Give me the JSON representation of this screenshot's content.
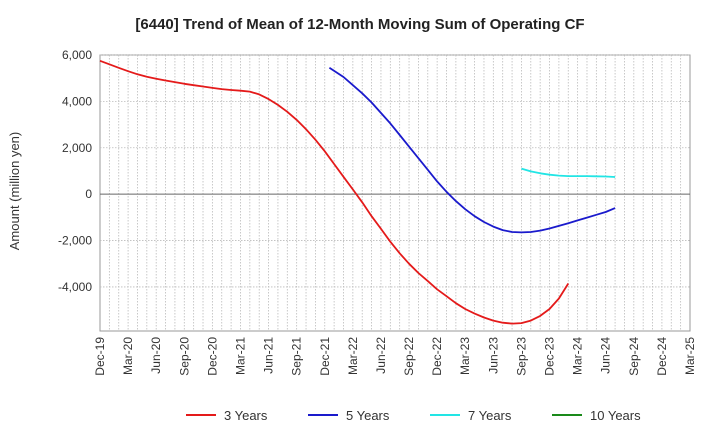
{
  "chart_data": {
    "type": "line",
    "title": "[6440]  Trend of Mean of 12-Month Moving Sum of Operating CF",
    "xlabel": "",
    "ylabel": "Amount (million yen)",
    "ylim": [
      -5900,
      6000
    ],
    "yticks": [
      6000,
      4000,
      2000,
      0,
      -2000,
      -4000
    ],
    "ytick_labels": [
      "6,000",
      "4,000",
      "2,000",
      "0",
      "-2,000",
      "-4,000"
    ],
    "x_tick_labels": [
      "Dec-19",
      "Mar-20",
      "Jun-20",
      "Sep-20",
      "Dec-20",
      "Mar-21",
      "Jun-21",
      "Sep-21",
      "Dec-21",
      "Mar-22",
      "Jun-22",
      "Sep-22",
      "Dec-22",
      "Mar-23",
      "Jun-23",
      "Sep-23",
      "Dec-23",
      "Mar-24",
      "Jun-24",
      "Sep-24",
      "Dec-24",
      "Mar-25"
    ],
    "grid": true,
    "legend_position": "bottom",
    "series": [
      {
        "name": "3 Years",
        "color": "#e41a1a",
        "points": [
          [
            0,
            5750
          ],
          [
            1,
            5600
          ],
          [
            2,
            5450
          ],
          [
            3,
            5300
          ],
          [
            4,
            5170
          ],
          [
            5,
            5060
          ],
          [
            6,
            4980
          ],
          [
            7,
            4900
          ],
          [
            8,
            4830
          ],
          [
            9,
            4760
          ],
          [
            10,
            4700
          ],
          [
            11,
            4640
          ],
          [
            12,
            4580
          ],
          [
            13,
            4530
          ],
          [
            14,
            4490
          ],
          [
            15,
            4460
          ],
          [
            16,
            4420
          ],
          [
            17,
            4300
          ],
          [
            18,
            4100
          ],
          [
            19,
            3850
          ],
          [
            20,
            3550
          ],
          [
            21,
            3200
          ],
          [
            22,
            2800
          ],
          [
            23,
            2350
          ],
          [
            24,
            1850
          ],
          [
            25,
            1300
          ],
          [
            26,
            750
          ],
          [
            27,
            200
          ],
          [
            28,
            -350
          ],
          [
            29,
            -950
          ],
          [
            30,
            -1500
          ],
          [
            31,
            -2050
          ],
          [
            32,
            -2550
          ],
          [
            33,
            -3000
          ],
          [
            34,
            -3400
          ],
          [
            35,
            -3750
          ],
          [
            36,
            -4100
          ],
          [
            37,
            -4400
          ],
          [
            38,
            -4700
          ],
          [
            39,
            -4950
          ],
          [
            40,
            -5150
          ],
          [
            41,
            -5320
          ],
          [
            42,
            -5450
          ],
          [
            43,
            -5540
          ],
          [
            44,
            -5580
          ],
          [
            45,
            -5560
          ],
          [
            46,
            -5450
          ],
          [
            47,
            -5250
          ],
          [
            48,
            -4950
          ],
          [
            49,
            -4500
          ],
          [
            50,
            -3850
          ]
        ]
      },
      {
        "name": "5 Years",
        "color": "#1a1acc",
        "points": [
          [
            24.5,
            5450
          ],
          [
            26,
            5050
          ],
          [
            27,
            4700
          ],
          [
            28,
            4350
          ],
          [
            29,
            3950
          ],
          [
            30,
            3500
          ],
          [
            31,
            3050
          ],
          [
            32,
            2550
          ],
          [
            33,
            2050
          ],
          [
            34,
            1550
          ],
          [
            35,
            1050
          ],
          [
            36,
            550
          ],
          [
            37,
            100
          ],
          [
            38,
            -300
          ],
          [
            39,
            -650
          ],
          [
            40,
            -950
          ],
          [
            41,
            -1200
          ],
          [
            42,
            -1400
          ],
          [
            43,
            -1550
          ],
          [
            44,
            -1630
          ],
          [
            45,
            -1650
          ],
          [
            46,
            -1630
          ],
          [
            47,
            -1570
          ],
          [
            48,
            -1480
          ],
          [
            49,
            -1370
          ],
          [
            50,
            -1250
          ],
          [
            51,
            -1130
          ],
          [
            52,
            -1010
          ],
          [
            53,
            -890
          ],
          [
            54,
            -770
          ],
          [
            55,
            -600
          ]
        ]
      },
      {
        "name": "7 Years",
        "color": "#22e5e5",
        "points": [
          [
            45,
            1100
          ],
          [
            46,
            980
          ],
          [
            47,
            900
          ],
          [
            48,
            840
          ],
          [
            49,
            800
          ],
          [
            50,
            780
          ],
          [
            51,
            780
          ],
          [
            52,
            780
          ],
          [
            53,
            770
          ],
          [
            54,
            760
          ],
          [
            55,
            740
          ]
        ]
      },
      {
        "name": "10 Years",
        "color": "#1a8a1a",
        "points": []
      }
    ]
  }
}
